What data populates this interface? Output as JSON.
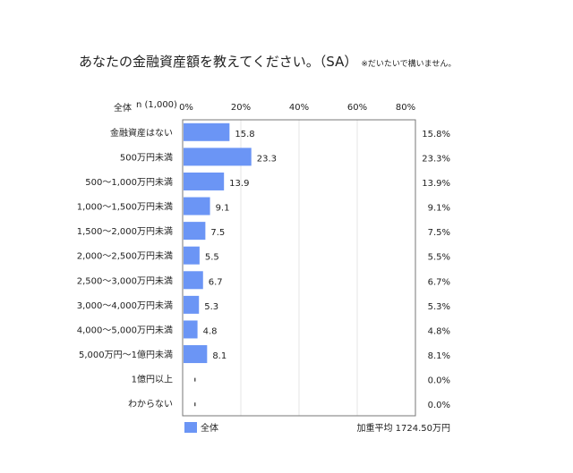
{
  "title": "あなたの金融資産額を教えてください。（SA）",
  "note": "※だいたいで構いません。",
  "header": {
    "group": "全体",
    "n": "n (1,000)"
  },
  "chart_data": {
    "type": "bar",
    "orientation": "horizontal",
    "categories": [
      "金融資産はない",
      "500万円未満",
      "500～1,000万円未満",
      "1,000～1,500万円未満",
      "1,500～2,000万円未満",
      "2,000～2,500万円未満",
      "2,500～3,000万円未満",
      "3,000～4,000万円未満",
      "4,000～5,000万円未満",
      "5,000万円～1億円未満",
      "1億円以上",
      "わからない"
    ],
    "series": [
      {
        "name": "全体",
        "values": [
          15.8,
          23.3,
          13.9,
          9.1,
          7.5,
          5.5,
          6.7,
          5.3,
          4.8,
          8.1,
          0.0,
          0.0
        ],
        "color": "#6b95f5"
      }
    ],
    "value_labels": [
      "15.8",
      "23.3",
      "13.9",
      "9.1",
      "7.5",
      "5.5",
      "6.7",
      "5.3",
      "4.8",
      "8.1",
      "",
      ""
    ],
    "right_labels": [
      "15.8%",
      "23.3%",
      "13.9%",
      "9.1%",
      "7.5%",
      "5.5%",
      "6.7%",
      "5.3%",
      "4.8%",
      "8.1%",
      "0.0%",
      "0.0%"
    ],
    "xticks": [
      "0%",
      "20%",
      "40%",
      "60%",
      "80%"
    ],
    "xlim": [
      0,
      80
    ],
    "grid": true,
    "legend": "bottom-left",
    "weighted_average": "加重平均 1724.50万円"
  }
}
